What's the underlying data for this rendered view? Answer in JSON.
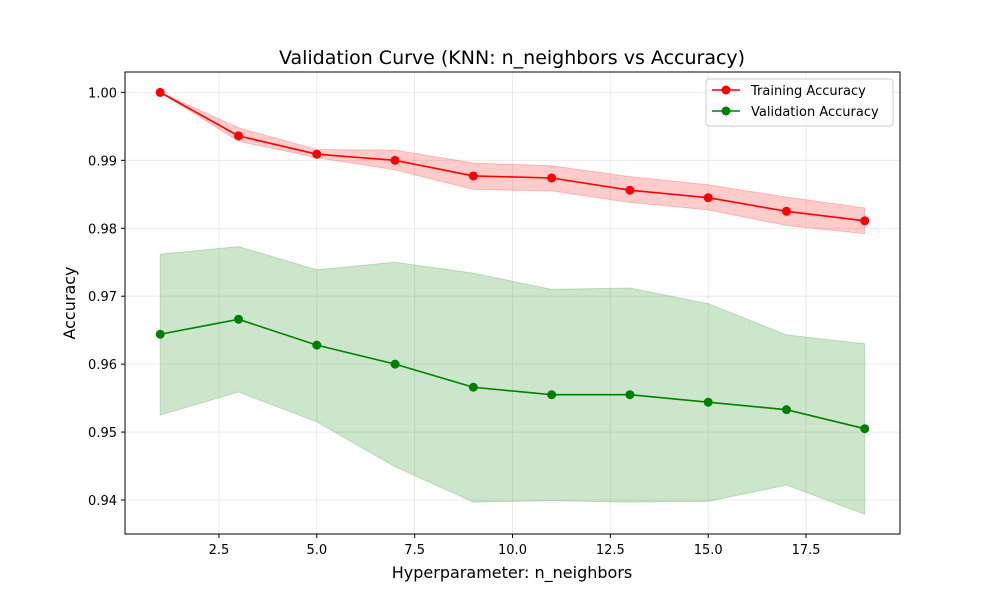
{
  "chart_data": {
    "type": "line",
    "title": "Validation Curve (KNN: n_neighbors vs Accuracy)",
    "xlabel": "Hyperparameter: n_neighbors",
    "ylabel": "Accuracy",
    "xlim": [
      0.1,
      19.9
    ],
    "ylim": [
      0.935,
      1.003
    ],
    "grid": true,
    "legend_position": "top-right",
    "x": [
      1,
      3,
      5,
      7,
      9,
      11,
      13,
      15,
      17,
      19
    ],
    "series": [
      {
        "name": "Training Accuracy",
        "color": "#ff0000",
        "band_color": "#ff0000",
        "values": [
          1.0,
          0.9936,
          0.9909,
          0.99,
          0.9877,
          0.9874,
          0.9856,
          0.9845,
          0.9825,
          0.9811
        ],
        "band_low": [
          1.0,
          0.9928,
          0.9904,
          0.9886,
          0.9857,
          0.9855,
          0.9838,
          0.9827,
          0.9804,
          0.9792
        ],
        "band_high": [
          1.0,
          0.9948,
          0.9916,
          0.9915,
          0.9896,
          0.9892,
          0.9876,
          0.9864,
          0.9846,
          0.983
        ]
      },
      {
        "name": "Validation Accuracy",
        "color": "#008000",
        "band_color": "#008000",
        "values": [
          0.9644,
          0.9666,
          0.9628,
          0.96,
          0.9566,
          0.9555,
          0.9555,
          0.9544,
          0.9533,
          0.9505
        ],
        "band_low": [
          0.9525,
          0.9559,
          0.9515,
          0.9449,
          0.9397,
          0.9399,
          0.9397,
          0.9398,
          0.9422,
          0.9379
        ],
        "band_high": [
          0.9762,
          0.9773,
          0.9739,
          0.975,
          0.9734,
          0.971,
          0.9712,
          0.9689,
          0.9643,
          0.963
        ]
      }
    ],
    "x_ticks": [
      2.5,
      5.0,
      7.5,
      10.0,
      12.5,
      15.0,
      17.5
    ],
    "x_tick_labels": [
      "2.5",
      "5.0",
      "7.5",
      "10.0",
      "12.5",
      "15.0",
      "17.5"
    ],
    "y_ticks": [
      0.94,
      0.95,
      0.96,
      0.97,
      0.98,
      0.99,
      1.0
    ],
    "y_tick_labels": [
      "0.94",
      "0.95",
      "0.96",
      "0.97",
      "0.98",
      "0.99",
      "1.00"
    ]
  }
}
